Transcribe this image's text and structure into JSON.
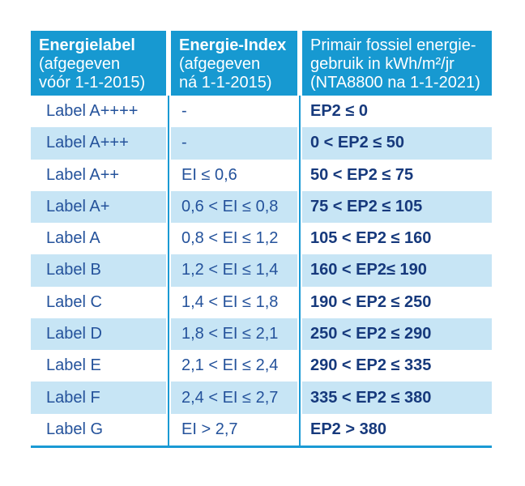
{
  "colors": {
    "header_blue": "#1799d1",
    "stripe_blue": "#c7e5f5",
    "text_navy": "#24529b",
    "text_navy_bold": "#16397c",
    "divider_blue": "#1a9ad4"
  },
  "table": {
    "header": {
      "col1": {
        "title": "Energielabel",
        "line2": "(afgegeven",
        "line3": "vóór 1-1-2015)"
      },
      "col2": {
        "title": "Energie-Index",
        "line2": "(afgegeven",
        "line3": "ná 1-1-2015)"
      },
      "col3": {
        "line1": "Primair fossiel energie-",
        "line2": "gebruik in kWh/m²/jr",
        "line3": "(NTA8800 na 1-1-2021)"
      }
    },
    "rows": [
      {
        "label": "Label A++++",
        "ei": "-",
        "ep2": "EP2 ≤ 0"
      },
      {
        "label": "Label A+++",
        "ei": "-",
        "ep2": "0 < EP2 ≤ 50"
      },
      {
        "label": "Label A++",
        "ei": "EI ≤ 0,6",
        "ep2": "50 < EP2 ≤ 75"
      },
      {
        "label": "Label A+",
        "ei": "0,6 < EI ≤ 0,8",
        "ep2": "75 < EP2 ≤ 105"
      },
      {
        "label": "Label A",
        "ei": "0,8 < EI ≤ 1,2",
        "ep2": "105 < EP2 ≤ 160"
      },
      {
        "label": "Label B",
        "ei": "1,2 < EI ≤ 1,4",
        "ep2": "160 < EP2≤ 190"
      },
      {
        "label": "Label C",
        "ei": "1,4 < EI ≤ 1,8",
        "ep2": "190 < EP2 ≤ 250"
      },
      {
        "label": "Label D",
        "ei": "1,8 < EI ≤ 2,1",
        "ep2": "250 < EP2 ≤ 290"
      },
      {
        "label": "Label E",
        "ei": "2,1 < EI ≤ 2,4",
        "ep2": "290 < EP2 ≤ 335"
      },
      {
        "label": "Label F",
        "ei": "2,4 < EI ≤ 2,7",
        "ep2": "335 < EP2 ≤ 380"
      },
      {
        "label": "Label G",
        "ei": "EI > 2,7",
        "ep2": "EP2 > 380"
      }
    ]
  }
}
